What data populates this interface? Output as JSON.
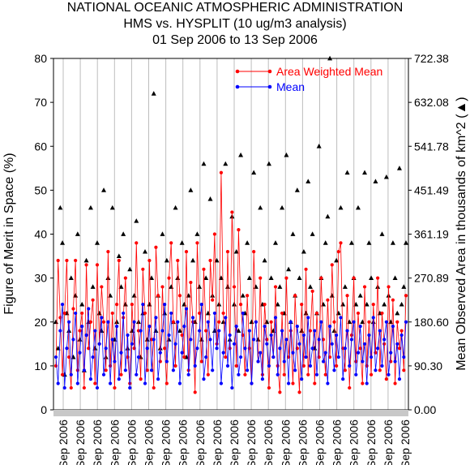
{
  "header": {
    "line1": "NATIONAL OCEANIC ATMOSPHERIC ADMINISTRATION",
    "line2": "HMS vs. HYSPLIT (10 ug/m3 analysis)",
    "line3": "01 Sep 2006 to 13 Sep 2006"
  },
  "chart_data": {
    "type": "line",
    "title": "HMS vs. HYSPLIT (10 ug/m3 analysis)",
    "subtitle": "01 Sep 2006 to 13 Sep 2006",
    "ylabel": "Figure of Merit in Space (%)",
    "y2label": "Mean Observed Area in thousands of km^2 (▲)",
    "ylim": [
      0,
      80
    ],
    "y2lim": [
      0,
      722.38
    ],
    "yticks": [
      "0",
      "10",
      "20",
      "30",
      "40",
      "50",
      "60",
      "70",
      "80"
    ],
    "y2ticks": [
      "0.00",
      "90.30",
      "180.60",
      "270.89",
      "361.19",
      "451.49",
      "541.78",
      "632.08",
      "722.38"
    ],
    "xticks": [
      "Sep 2006",
      "Sep 2006",
      "Sep 2006",
      "Sep 2006",
      "Sep 2006",
      "Sep 2006",
      "Sep 2006",
      "Sep 2006",
      "Sep 2006",
      "Sep 2006",
      "Sep 2006",
      "Sep 2006",
      "Sep 2006",
      "Sep 2006",
      "Sep 2006",
      "Sep 2006",
      "Sep 2006",
      "Sep 2006",
      "Sep 2006",
      "Sep 2006",
      "Sep 2006"
    ],
    "grid": true,
    "legend_position": "top-right",
    "series": [
      {
        "name": "Area Weighted Mean",
        "color": "#ff0000",
        "marker": "circle",
        "values": [
          10,
          34,
          21,
          8,
          22,
          34,
          12,
          5,
          23,
          34,
          9,
          18,
          22,
          5,
          33,
          14,
          20,
          25,
          6,
          33,
          15,
          28,
          20,
          9,
          36,
          10,
          22,
          5,
          24,
          34,
          8,
          21,
          30,
          12,
          6,
          24,
          14,
          38,
          18,
          7,
          32,
          22,
          9,
          34,
          16,
          5,
          37,
          26,
          11,
          28,
          14,
          6,
          30,
          38,
          20,
          10,
          34,
          26,
          17,
          12,
          36,
          9,
          29,
          20,
          4,
          38,
          22,
          11,
          32,
          18,
          8,
          34,
          25,
          40,
          15,
          20,
          54,
          22,
          12,
          36,
          14,
          45,
          28,
          10,
          41,
          24,
          17,
          8,
          26,
          14,
          6,
          36,
          20,
          11,
          30,
          8,
          24,
          16,
          5,
          20,
          12,
          28,
          10,
          4,
          22,
          8,
          30,
          12,
          18,
          6,
          26,
          14,
          4,
          24,
          10,
          32,
          8,
          18,
          27,
          6,
          22,
          12,
          30,
          16,
          8,
          25,
          12,
          33,
          20,
          10,
          36,
          38,
          14,
          9,
          26,
          5,
          17,
          30,
          11,
          22,
          14,
          6,
          28,
          10,
          20,
          8,
          24,
          13,
          30,
          9,
          22,
          15,
          7,
          28,
          11,
          25,
          6,
          20,
          14,
          18,
          9,
          26
        ]
      },
      {
        "name": "Mean",
        "color": "#0000ff",
        "marker": "circle",
        "values": [
          12,
          6,
          18,
          24,
          5,
          14,
          20,
          8,
          16,
          22,
          6,
          13,
          19,
          9,
          17,
          23,
          7,
          12,
          18,
          5,
          15,
          21,
          8,
          14,
          20,
          6,
          16,
          11,
          19,
          7,
          13,
          22,
          9,
          17,
          5,
          15,
          20,
          8,
          12,
          18,
          24,
          6,
          14,
          19,
          9,
          16,
          21,
          7,
          13,
          18,
          24,
          11,
          17,
          22,
          9,
          15,
          20,
          6,
          13,
          19,
          23,
          8,
          16,
          21,
          10,
          14,
          18,
          24,
          7,
          12,
          20,
          16,
          9,
          22,
          14,
          18,
          6,
          13,
          21,
          10,
          17,
          5,
          15,
          19,
          8,
          12,
          22,
          14,
          9,
          18,
          6,
          16,
          20,
          11,
          13,
          7,
          19,
          15,
          10,
          17,
          12,
          21,
          8,
          14,
          18,
          11,
          16,
          6,
          20,
          13,
          9,
          19,
          15,
          7,
          17,
          12,
          21,
          10,
          14,
          18,
          8,
          16,
          20,
          11,
          13,
          6,
          19,
          15,
          9,
          17,
          12,
          21,
          7,
          14,
          18,
          10,
          16,
          20,
          8,
          13,
          19,
          11,
          15,
          6,
          17,
          12,
          21,
          9,
          14,
          18,
          10,
          16,
          20,
          8,
          13,
          19,
          11,
          15,
          7,
          17,
          12,
          20
        ]
      },
      {
        "name": "Mean Observed Area (thousands of km^2)",
        "color": "#000000",
        "marker": "triangle",
        "axis": "right",
        "values": [
          20,
          14,
          46,
          38,
          8,
          22,
          18,
          30,
          12,
          26,
          40,
          16,
          24,
          9,
          34,
          20,
          46,
          28,
          14,
          38,
          22,
          18,
          50,
          12,
          30,
          26,
          46,
          16,
          20,
          35,
          28,
          40,
          24,
          14,
          32,
          18,
          26,
          43,
          20,
          12,
          22,
          36,
          16,
          24,
          30,
          72,
          18,
          26,
          14,
          40,
          22,
          34,
          16,
          28,
          20,
          46,
          30,
          18,
          38,
          24,
          12,
          26,
          50,
          34,
          20,
          40,
          28,
          16,
          56,
          30,
          22,
          48,
          26,
          18,
          34,
          24,
          30,
          20,
          56,
          28,
          16,
          44,
          24,
          36,
          18,
          58,
          26,
          22,
          38,
          30,
          20,
          54,
          28,
          16,
          46,
          24,
          34,
          20,
          56,
          30,
          18,
          38,
          24,
          28,
          46,
          22,
          58,
          32,
          20,
          40,
          26,
          50,
          30,
          18,
          36,
          22,
          52,
          28,
          40,
          14,
          22,
          60,
          30,
          24,
          38,
          44,
          80,
          26,
          18,
          34,
          22,
          46,
          24,
          28,
          54,
          20,
          38,
          30,
          24,
          46,
          26,
          20,
          54,
          24,
          38,
          30,
          20,
          52,
          28,
          22,
          40,
          24,
          53,
          26,
          20,
          38,
          30,
          22,
          55,
          24,
          28,
          38
        ]
      }
    ]
  }
}
